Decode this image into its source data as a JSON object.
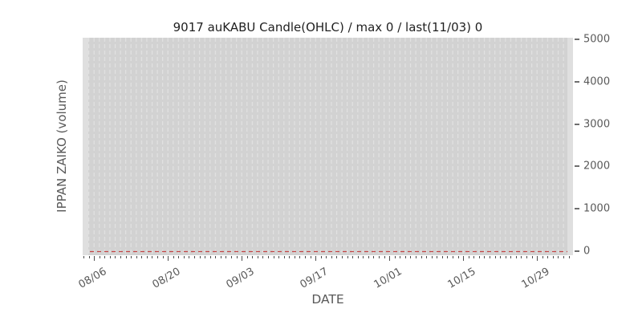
{
  "chart_data": {
    "type": "candlestick",
    "title": "9017 auKABU Candle(OHLC) / max 0 / last(11/03) 0",
    "xlabel": "DATE",
    "ylabel": "IPPAN ZAIKO (volume)",
    "x_tick_labels": [
      "08/06",
      "08/20",
      "09/03",
      "09/17",
      "10/01",
      "10/15",
      "10/29"
    ],
    "y_tick_labels": [
      "0",
      "1000",
      "2000",
      "3000",
      "4000",
      "5000"
    ],
    "y_tick_values": [
      0,
      1000,
      2000,
      3000,
      4000,
      5000
    ],
    "ylim": [
      0,
      5000
    ],
    "grid": true,
    "legend": "none",
    "series": [
      {
        "name": "9017 auKABU volume",
        "max": 0,
        "last_date": "11/03",
        "last_value": 0,
        "description": "All plotted values are 0; the only visible data mark is the flat dashed zero line spanning the full date range."
      }
    ],
    "zero_line": {
      "y": 0,
      "style": "dashed",
      "color": "#c44545"
    },
    "colors": {
      "plot_background": "#d2d2d2",
      "plot_edge_margin": "#dfdfdf",
      "gridline": "#e2e2e2",
      "zero_line": "#c44545",
      "tick_mark": "#4f4f4f",
      "tick_label_text": "#595959",
      "title_text": "#1f1f1f"
    }
  }
}
